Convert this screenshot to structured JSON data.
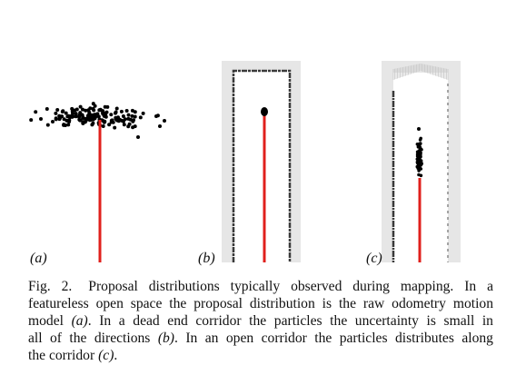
{
  "figure": {
    "panels": [
      {
        "label": "(a)",
        "description_key": "open-space"
      },
      {
        "label": "(b)",
        "description_key": "dead-end-corridor"
      },
      {
        "label": "(c)",
        "description_key": "open-corridor"
      }
    ],
    "colors": {
      "trajectory": "#e0201c",
      "particles": "#000000",
      "walls": "#3a3a3a",
      "map_bg": "#e6e6e6"
    }
  },
  "caption": {
    "figure_number": "Fig. 2.",
    "line1_text": "Proposal distributions typically observed during mapping. In a",
    "line2_text": "featureless open space the proposal distribution is the raw odometry motion",
    "line3_pre": "model",
    "line3_ref": "(a)",
    "line3_post": ". In a dead end corridor the particles the uncertainty is small in",
    "line4_pre": "all of the directions",
    "line4_ref": "(b)",
    "line4_post": ". In an open corridor the particles distributes along",
    "line5_pre": "the corridor",
    "line5_ref": "(c)",
    "line5_post": "."
  }
}
